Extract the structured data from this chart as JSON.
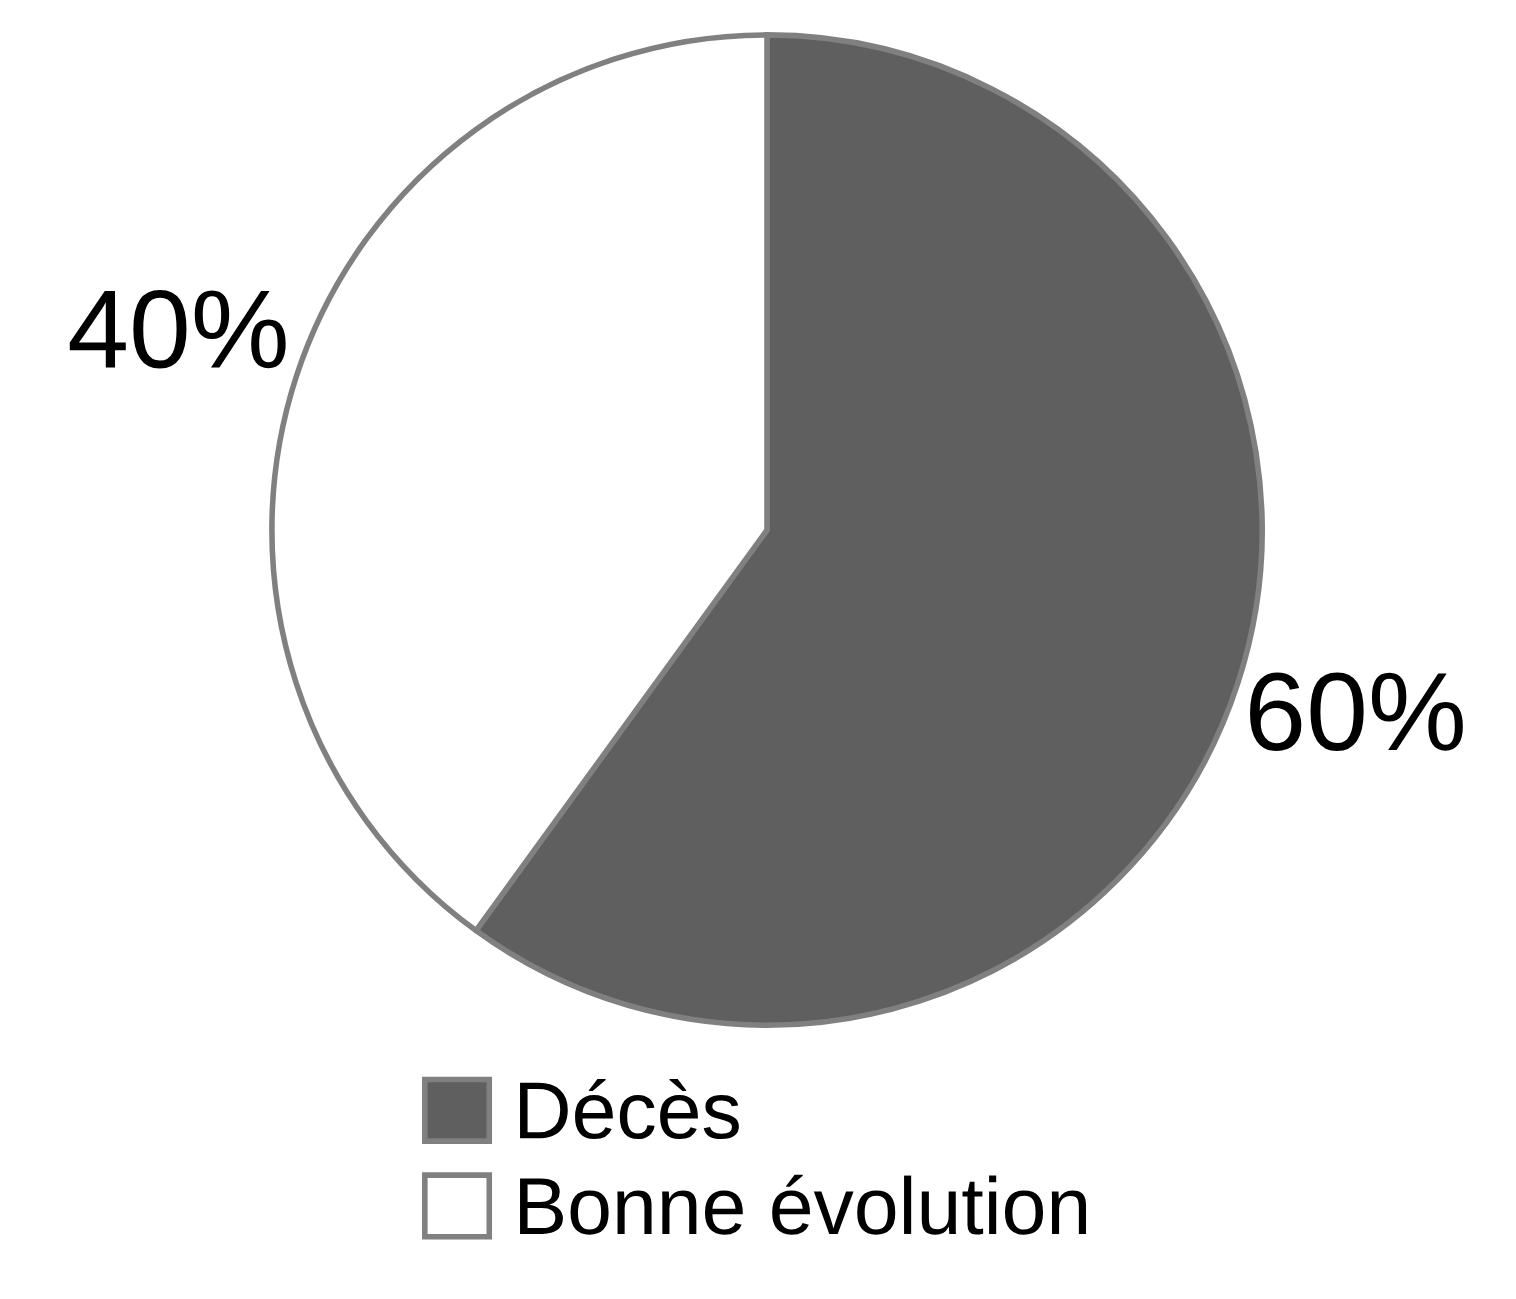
{
  "chart_data": {
    "type": "pie",
    "categories": [
      "Décès",
      "Bonne évolution"
    ],
    "values": [
      60,
      40
    ],
    "colors": [
      "#5f5f5f",
      "#ffffff"
    ],
    "value_labels": [
      "60%",
      "40%"
    ],
    "legend": "bottom"
  }
}
